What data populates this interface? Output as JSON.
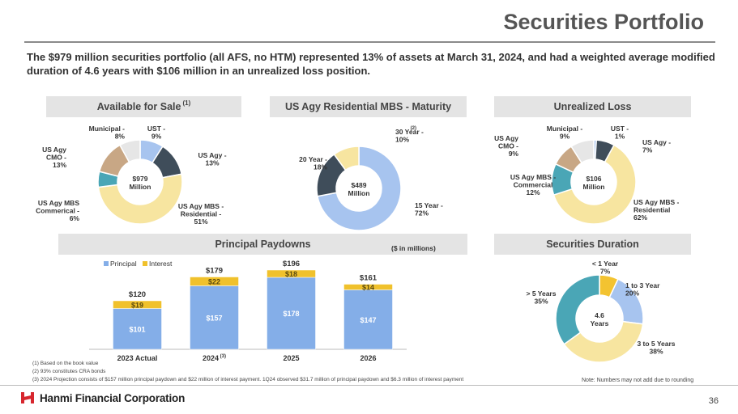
{
  "page": {
    "title": "Securities Portfolio",
    "intro": "The $979 million securities portfolio (all AFS, no HTM) represented 13% of assets at March 31, 2024, and had a weighted average modified duration of 4.6 years with $106 million in an unrealized loss position.",
    "page_number": "36",
    "logo_text": "Hanmi Financial Corporation",
    "note": "Note: Numbers may not add due to rounding"
  },
  "headers": {
    "afs": "Available for Sale",
    "afs_note": "(1)",
    "mbs": "US Agy Residential MBS - Maturity",
    "loss": "Unrealized Loss",
    "paydowns": "Principal Paydowns",
    "paydowns_units": "($ in millions)",
    "duration": "Securities Duration"
  },
  "footnotes": [
    "(1)   Based on the book value",
    "(2)   93% constitutes CRA bonds",
    "(3)   2024 Projection consists of $157 million principal paydown and $22 million of interest payment. 1Q24 observed $31.7 million of principal paydown and $6.3 million of interest payment"
  ],
  "colors": {
    "blue_light": "#a7c4ef",
    "dark_slate": "#3f4d5a",
    "yellow_light": "#f7e5a0",
    "teal": "#4aa6b6",
    "tan": "#c8a785",
    "light_gray": "#e6e6e6",
    "gold": "#f3c331",
    "bar_principal": "#84aee8",
    "bar_interest": "#f0c12c",
    "header_bg": "#e4e4e4"
  },
  "chart_data": [
    {
      "id": "afs",
      "type": "pie",
      "center_label": [
        "$979",
        "Million"
      ],
      "slices": [
        {
          "label": [
            "UST -",
            "9%"
          ],
          "value": 9,
          "color": "#a7c4ef"
        },
        {
          "label": [
            "US Agy -",
            "13%"
          ],
          "value": 13,
          "color": "#3f4d5a"
        },
        {
          "label": [
            "US Agy MBS -",
            "Residential -",
            "51%"
          ],
          "value": 51,
          "color": "#f7e5a0"
        },
        {
          "label": [
            "US Agy MBS",
            "Commerical -",
            "6%"
          ],
          "value": 6,
          "color": "#4aa6b6"
        },
        {
          "label": [
            "US Agy",
            "CMO -",
            "13%"
          ],
          "value": 13,
          "color": "#c8a785"
        },
        {
          "label": [
            "Municipal -",
            "8%"
          ],
          "value": 8,
          "color": "#e6e6e6"
        }
      ]
    },
    {
      "id": "mbs",
      "type": "pie",
      "center_label": [
        "$489",
        "Million"
      ],
      "slices": [
        {
          "label": [
            "15 Year -",
            "72%"
          ],
          "value": 72,
          "color": "#a7c4ef"
        },
        {
          "label": [
            "20 Year -",
            "18%"
          ],
          "value": 18,
          "color": "#3f4d5a"
        },
        {
          "label": [
            "30 Year -",
            "10%"
          ],
          "label_note": "(2)",
          "value": 10,
          "color": "#f7e5a0"
        }
      ]
    },
    {
      "id": "loss",
      "type": "pie",
      "center_label": [
        "$106",
        "Million"
      ],
      "slices": [
        {
          "label": [
            "UST -",
            "1%"
          ],
          "value": 1,
          "color": "#a7c4ef"
        },
        {
          "label": [
            "US Agy -",
            "7%"
          ],
          "value": 7,
          "color": "#3f4d5a"
        },
        {
          "label": [
            "US Agy MBS -",
            "Residential",
            "62%"
          ],
          "value": 62,
          "color": "#f7e5a0"
        },
        {
          "label": [
            "US Agy MBS -",
            "Commercial",
            "12%"
          ],
          "value": 12,
          "color": "#4aa6b6"
        },
        {
          "label": [
            "US Agy",
            "CMO -",
            "9%"
          ],
          "value": 9,
          "color": "#c8a785"
        },
        {
          "label": [
            "Municipal -",
            "9%"
          ],
          "value": 9,
          "color": "#e6e6e6"
        }
      ]
    },
    {
      "id": "paydowns",
      "type": "bar",
      "stacked": true,
      "categories": [
        "2023 Actual",
        "2024",
        "2025",
        "2026"
      ],
      "category_notes": [
        "",
        "(3)",
        "",
        ""
      ],
      "series": [
        {
          "name": "Principal",
          "values": [
            101,
            157,
            178,
            147
          ],
          "color": "#84aee8"
        },
        {
          "name": "Interest",
          "values": [
            19,
            22,
            18,
            14
          ],
          "color": "#f0c12c"
        }
      ],
      "value_labels": {
        "Principal": [
          "$101",
          "$157",
          "$178",
          "$147"
        ],
        "Interest": [
          "$19",
          "$22",
          "$18",
          "$14"
        ]
      },
      "totals": [
        "$120",
        "$179",
        "$196",
        "$161"
      ],
      "ylim": [
        0,
        200
      ]
    },
    {
      "id": "duration",
      "type": "pie",
      "center_label": [
        "4.6",
        "Years"
      ],
      "slices": [
        {
          "label": [
            "< 1 Year",
            "7%"
          ],
          "value": 7,
          "color": "#f3c331"
        },
        {
          "label": [
            "1 to 3 Year",
            "20%"
          ],
          "value": 20,
          "color": "#a7c4ef"
        },
        {
          "label": [
            "3 to 5 Years",
            "38%"
          ],
          "value": 38,
          "color": "#f7e5a0"
        },
        {
          "label": [
            "> 5 Years",
            "35%"
          ],
          "value": 35,
          "color": "#4aa6b6"
        }
      ]
    }
  ]
}
